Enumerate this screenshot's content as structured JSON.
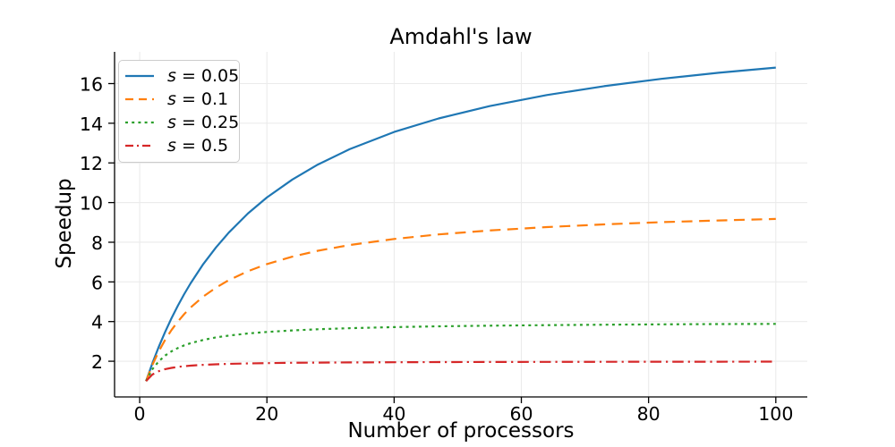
{
  "chart_data": {
    "type": "line",
    "title": "Amdahl's law",
    "xlabel": "Number of processors",
    "ylabel": "Speedup",
    "xlim": [
      -3.95,
      104.95
    ],
    "ylim": [
      0.2,
      17.6
    ],
    "x_ticks": [
      0,
      20,
      40,
      60,
      80,
      100
    ],
    "y_ticks": [
      2,
      4,
      6,
      8,
      10,
      12,
      14,
      16
    ],
    "grid": true,
    "grid_color": "#ebebeb",
    "spine_color": "#000000",
    "background_color": "#ffffff",
    "legend_position": "upper left",
    "legend_border_color": "#cccccc",
    "x": [
      1,
      2,
      3,
      4,
      5,
      6,
      7,
      8,
      10,
      12,
      14,
      17,
      20,
      24,
      28,
      33,
      40,
      47,
      55,
      64,
      73,
      82,
      91,
      100
    ],
    "series": [
      {
        "label": "s = 0.05",
        "s": 0.05,
        "color": "#1f77b4",
        "linestyle": "solid",
        "values": [
          1.0,
          1.905,
          2.727,
          3.478,
          4.167,
          4.8,
          5.385,
          5.926,
          6.897,
          7.742,
          8.485,
          9.444,
          10.256,
          11.163,
          11.915,
          12.692,
          13.559,
          14.242,
          14.865,
          15.422,
          15.87,
          16.238,
          16.545,
          16.807
        ]
      },
      {
        "label": "s = 0.1",
        "s": 0.1,
        "color": "#ff7f0e",
        "linestyle": "dashed",
        "values": [
          1.0,
          1.818,
          2.5,
          3.077,
          3.571,
          4.0,
          4.375,
          4.706,
          5.263,
          5.714,
          6.087,
          6.538,
          6.897,
          7.273,
          7.568,
          7.857,
          8.163,
          8.393,
          8.594,
          8.767,
          8.902,
          9.011,
          9.1,
          9.174
        ]
      },
      {
        "label": "s = 0.25",
        "s": 0.25,
        "color": "#2ca02c",
        "linestyle": "dotted",
        "values": [
          1.0,
          1.6,
          2.0,
          2.286,
          2.5,
          2.667,
          2.8,
          2.909,
          3.077,
          3.2,
          3.294,
          3.4,
          3.478,
          3.556,
          3.613,
          3.667,
          3.721,
          3.76,
          3.793,
          3.821,
          3.842,
          3.859,
          3.873,
          3.883
        ]
      },
      {
        "label": "s = 0.5",
        "s": 0.5,
        "color": "#d62728",
        "linestyle": "dashdot",
        "values": [
          1.0,
          1.333,
          1.5,
          1.6,
          1.667,
          1.714,
          1.75,
          1.778,
          1.818,
          1.846,
          1.867,
          1.889,
          1.905,
          1.92,
          1.931,
          1.941,
          1.951,
          1.958,
          1.964,
          1.969,
          1.973,
          1.976,
          1.978,
          1.98
        ]
      }
    ]
  }
}
